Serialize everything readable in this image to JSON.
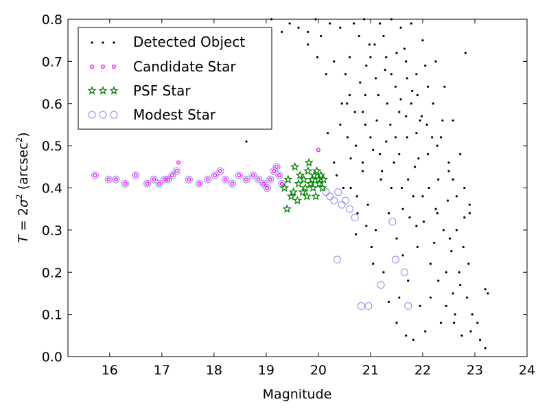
{
  "chart_data": {
    "type": "scatter",
    "xlabel": "Magnitude",
    "ylabel": "T = 2σ² (arcsec²)",
    "xlim": [
      15.2,
      24
    ],
    "ylim": [
      0.0,
      0.8
    ],
    "xticks": [
      16,
      17,
      18,
      19,
      20,
      21,
      22,
      23,
      24
    ],
    "yticks": [
      0.0,
      0.1,
      0.2,
      0.3,
      0.4,
      0.5,
      0.6,
      0.7,
      0.8
    ],
    "grid": false,
    "legend": "top-left",
    "colors": {
      "detected": "#000000",
      "candidate": "#ff00ff",
      "psf": "#007f00",
      "modest": "#9999ee"
    },
    "series": [
      {
        "name": "Detected Object",
        "marker": "dot",
        "points": [
          [
            18.62,
            0.51
          ],
          [
            20.18,
            0.53
          ],
          [
            20.35,
            0.43
          ],
          [
            20.48,
            0.4
          ],
          [
            20.56,
            0.52
          ],
          [
            20.62,
            0.47
          ],
          [
            20.7,
            0.58
          ],
          [
            20.74,
            0.38
          ],
          [
            20.8,
            0.65
          ],
          [
            20.85,
            0.44
          ],
          [
            20.9,
            0.55
          ],
          [
            20.95,
            0.36
          ],
          [
            21.0,
            0.71
          ],
          [
            21.05,
            0.49
          ],
          [
            21.1,
            0.3
          ],
          [
            21.15,
            0.62
          ],
          [
            21.2,
            0.42
          ],
          [
            21.25,
            0.76
          ],
          [
            21.3,
            0.51
          ],
          [
            21.35,
            0.34
          ],
          [
            21.4,
            0.67
          ],
          [
            21.45,
            0.46
          ],
          [
            21.5,
            0.28
          ],
          [
            21.55,
            0.58
          ],
          [
            21.6,
            0.4
          ],
          [
            21.65,
            0.73
          ],
          [
            21.7,
            0.52
          ],
          [
            21.75,
            0.33
          ],
          [
            21.8,
            0.63
          ],
          [
            21.85,
            0.45
          ],
          [
            21.9,
            0.26
          ],
          [
            21.95,
            0.56
          ],
          [
            22.0,
            0.38
          ],
          [
            22.05,
            0.69
          ],
          [
            22.1,
            0.48
          ],
          [
            22.15,
            0.22
          ],
          [
            22.2,
            0.6
          ],
          [
            22.25,
            0.35
          ],
          [
            22.3,
            0.18
          ],
          [
            22.35,
            0.52
          ],
          [
            22.4,
            0.3
          ],
          [
            22.45,
            0.12
          ],
          [
            22.5,
            0.44
          ],
          [
            22.55,
            0.25
          ],
          [
            22.6,
            0.08
          ],
          [
            22.65,
            0.38
          ],
          [
            22.7,
            0.2
          ],
          [
            22.75,
            0.05
          ],
          [
            22.8,
            0.33
          ],
          [
            22.85,
            0.14
          ],
          [
            22.95,
            0.1
          ],
          [
            23.1,
            0.04
          ],
          [
            23.2,
            0.02
          ],
          [
            23.25,
            0.15
          ],
          [
            22.82,
            0.72
          ],
          [
            22.9,
            0.36
          ],
          [
            21.02,
            0.26
          ],
          [
            21.35,
            0.13
          ],
          [
            21.5,
            0.08
          ],
          [
            21.68,
            0.05
          ],
          [
            21.82,
            0.04
          ],
          [
            22.05,
            0.06
          ],
          [
            20.52,
            0.67
          ],
          [
            20.68,
            0.79
          ],
          [
            20.88,
            0.8
          ],
          [
            20.98,
            0.74
          ],
          [
            21.18,
            0.79
          ],
          [
            21.4,
            0.8
          ],
          [
            21.58,
            0.78
          ],
          [
            21.78,
            0.79
          ],
          [
            22.0,
            0.75
          ],
          [
            22.25,
            0.7
          ],
          [
            22.42,
            0.64
          ],
          [
            22.58,
            0.56
          ],
          [
            22.72,
            0.48
          ],
          [
            19.1,
            0.8
          ],
          [
            19.3,
            0.77
          ],
          [
            19.45,
            0.79
          ],
          [
            19.62,
            0.78
          ],
          [
            19.8,
            0.77
          ],
          [
            19.95,
            0.8
          ],
          [
            20.05,
            0.76
          ],
          [
            20.22,
            0.79
          ],
          [
            20.42,
            0.78
          ],
          [
            19.8,
            0.74
          ],
          [
            19.98,
            0.71
          ],
          [
            20.15,
            0.67
          ],
          [
            20.3,
            0.7
          ],
          [
            20.45,
            0.6
          ],
          [
            20.6,
            0.62
          ],
          [
            20.85,
            0.58
          ],
          [
            21.12,
            0.56
          ],
          [
            21.32,
            0.6
          ],
          [
            21.55,
            0.48
          ],
          [
            21.72,
            0.42
          ],
          [
            21.92,
            0.47
          ],
          [
            22.12,
            0.4
          ],
          [
            22.3,
            0.42
          ],
          [
            22.48,
            0.37
          ],
          [
            22.65,
            0.3
          ],
          [
            22.78,
            0.26
          ],
          [
            22.88,
            0.22
          ],
          [
            23.05,
            0.08
          ],
          [
            22.92,
            0.06
          ],
          [
            22.62,
            0.1
          ],
          [
            22.35,
            0.08
          ],
          [
            22.15,
            0.14
          ],
          [
            21.95,
            0.12
          ],
          [
            21.55,
            0.14
          ],
          [
            21.25,
            0.2
          ],
          [
            21.05,
            0.22
          ],
          [
            20.92,
            0.31
          ],
          [
            20.75,
            0.34
          ],
          [
            20.62,
            0.4
          ],
          [
            20.72,
            0.29
          ],
          [
            21.62,
            0.24
          ],
          [
            21.72,
            0.18
          ],
          [
            21.88,
            0.31
          ],
          [
            22.22,
            0.27
          ],
          [
            22.45,
            0.2
          ],
          [
            22.58,
            0.15
          ],
          [
            22.72,
            0.17
          ],
          [
            22.9,
            0.34
          ],
          [
            23.2,
            0.16
          ],
          [
            21.4,
            0.4
          ],
          [
            21.62,
            0.35
          ],
          [
            21.82,
            0.38
          ],
          [
            22.02,
            0.32
          ],
          [
            22.28,
            0.34
          ],
          [
            22.52,
            0.28
          ],
          [
            21.22,
            0.44
          ],
          [
            21.48,
            0.52
          ],
          [
            21.68,
            0.57
          ],
          [
            21.88,
            0.53
          ],
          [
            22.08,
            0.55
          ],
          [
            22.28,
            0.5
          ],
          [
            22.5,
            0.46
          ],
          [
            20.6,
            0.71
          ],
          [
            20.78,
            0.76
          ],
          [
            20.92,
            0.69
          ],
          [
            21.1,
            0.66
          ],
          [
            21.3,
            0.71
          ],
          [
            21.5,
            0.72
          ],
          [
            21.7,
            0.66
          ],
          [
            21.9,
            0.62
          ],
          [
            22.1,
            0.64
          ],
          [
            20.72,
            0.5
          ],
          [
            20.85,
            0.46
          ],
          [
            21.0,
            0.52
          ],
          [
            21.18,
            0.48
          ],
          [
            21.38,
            0.55
          ],
          [
            21.58,
            0.61
          ],
          [
            21.78,
            0.6
          ],
          [
            21.98,
            0.57
          ],
          [
            22.18,
            0.52
          ],
          [
            22.38,
            0.56
          ],
          [
            22.58,
            0.42
          ],
          [
            22.8,
            0.4
          ],
          [
            20.3,
            0.46
          ],
          [
            20.42,
            0.55
          ],
          [
            20.55,
            0.6
          ],
          [
            20.9,
            0.62
          ],
          [
            21.08,
            0.74
          ],
          [
            21.28,
            0.68
          ],
          [
            21.48,
            0.64
          ],
          [
            21.68,
            0.7
          ],
          [
            21.88,
            0.67
          ]
        ]
      },
      {
        "name": "Candidate Star",
        "marker": "ring-small",
        "points": [
          [
            15.72,
            0.43
          ],
          [
            15.98,
            0.42
          ],
          [
            16.12,
            0.42
          ],
          [
            16.3,
            0.41
          ],
          [
            16.5,
            0.43
          ],
          [
            16.72,
            0.41
          ],
          [
            16.85,
            0.42
          ],
          [
            16.95,
            0.41
          ],
          [
            17.05,
            0.42
          ],
          [
            17.12,
            0.42
          ],
          [
            17.2,
            0.43
          ],
          [
            17.28,
            0.44
          ],
          [
            17.32,
            0.46
          ],
          [
            17.52,
            0.42
          ],
          [
            17.72,
            0.41
          ],
          [
            17.88,
            0.42
          ],
          [
            18.02,
            0.43
          ],
          [
            18.12,
            0.44
          ],
          [
            18.22,
            0.42
          ],
          [
            18.35,
            0.41
          ],
          [
            18.48,
            0.43
          ],
          [
            18.62,
            0.42
          ],
          [
            18.75,
            0.43
          ],
          [
            18.85,
            0.42
          ],
          [
            18.95,
            0.41
          ],
          [
            19.02,
            0.4
          ],
          [
            19.08,
            0.42
          ],
          [
            19.15,
            0.44
          ],
          [
            19.2,
            0.45
          ],
          [
            19.25,
            0.43
          ],
          [
            19.3,
            0.41
          ],
          [
            20.0,
            0.49
          ]
        ]
      },
      {
        "name": "PSF Star",
        "marker": "star",
        "points": [
          [
            19.35,
            0.4
          ],
          [
            19.4,
            0.35
          ],
          [
            19.42,
            0.42
          ],
          [
            19.48,
            0.38
          ],
          [
            19.52,
            0.39
          ],
          [
            19.55,
            0.45
          ],
          [
            19.6,
            0.37
          ],
          [
            19.62,
            0.41
          ],
          [
            19.65,
            0.43
          ],
          [
            19.7,
            0.39
          ],
          [
            19.72,
            0.42
          ],
          [
            19.75,
            0.4
          ],
          [
            19.78,
            0.38
          ],
          [
            19.8,
            0.44
          ],
          [
            19.82,
            0.46
          ],
          [
            19.85,
            0.41
          ],
          [
            19.88,
            0.42
          ],
          [
            19.9,
            0.4
          ],
          [
            19.92,
            0.43
          ],
          [
            19.95,
            0.38
          ],
          [
            19.97,
            0.44
          ],
          [
            20.0,
            0.42
          ],
          [
            20.02,
            0.41
          ],
          [
            20.05,
            0.43
          ],
          [
            20.08,
            0.4
          ],
          [
            20.1,
            0.42
          ]
        ]
      },
      {
        "name": "Modest Star",
        "marker": "ring-large",
        "points": [
          [
            15.72,
            0.43
          ],
          [
            15.98,
            0.42
          ],
          [
            16.12,
            0.42
          ],
          [
            16.3,
            0.41
          ],
          [
            16.5,
            0.43
          ],
          [
            16.72,
            0.41
          ],
          [
            16.85,
            0.42
          ],
          [
            16.95,
            0.41
          ],
          [
            17.05,
            0.42
          ],
          [
            17.12,
            0.42
          ],
          [
            17.2,
            0.43
          ],
          [
            17.28,
            0.44
          ],
          [
            17.52,
            0.42
          ],
          [
            17.72,
            0.41
          ],
          [
            17.88,
            0.42
          ],
          [
            18.02,
            0.43
          ],
          [
            18.12,
            0.44
          ],
          [
            18.22,
            0.42
          ],
          [
            18.35,
            0.41
          ],
          [
            18.48,
            0.43
          ],
          [
            18.62,
            0.42
          ],
          [
            18.75,
            0.43
          ],
          [
            18.85,
            0.42
          ],
          [
            18.95,
            0.41
          ],
          [
            19.02,
            0.4
          ],
          [
            19.08,
            0.42
          ],
          [
            19.15,
            0.44
          ],
          [
            19.2,
            0.45
          ],
          [
            19.25,
            0.43
          ],
          [
            19.3,
            0.41
          ],
          [
            20.15,
            0.39
          ],
          [
            20.22,
            0.38
          ],
          [
            20.3,
            0.37
          ],
          [
            20.38,
            0.39
          ],
          [
            20.45,
            0.36
          ],
          [
            20.52,
            0.37
          ],
          [
            20.6,
            0.35
          ],
          [
            20.7,
            0.33
          ],
          [
            20.36,
            0.23
          ],
          [
            20.82,
            0.12
          ],
          [
            20.96,
            0.12
          ],
          [
            21.2,
            0.17
          ],
          [
            21.42,
            0.32
          ],
          [
            21.48,
            0.23
          ],
          [
            21.65,
            0.2
          ],
          [
            21.72,
            0.12
          ]
        ]
      }
    ]
  }
}
